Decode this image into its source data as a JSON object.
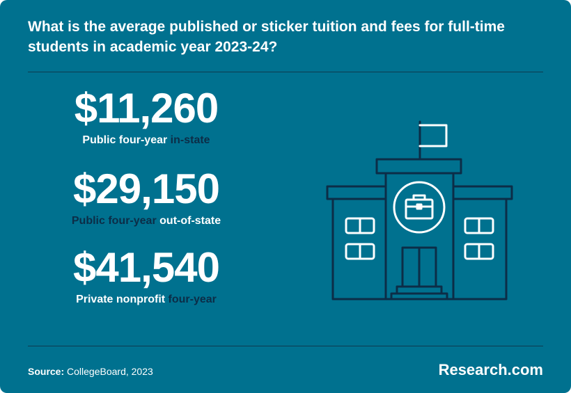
{
  "header": {
    "title": "What is the average published or sticker tuition and fees for full-time students in academic year 2023-24?"
  },
  "stats": [
    {
      "value": "$11,260",
      "label_part1": "Public four-year",
      "label_part2": "in-state"
    },
    {
      "value": "$29,150",
      "label_part1": "Public four-year",
      "label_part2": "out-of-state"
    },
    {
      "value": "$41,540",
      "label_part1": "Private nonprofit",
      "label_part2": "four-year"
    }
  ],
  "footer": {
    "source_label": "Source:",
    "source_text": "CollegeBoard, 2023",
    "brand": "Research.com"
  },
  "illustration": {
    "icon": "school-building-icon"
  },
  "colors": {
    "background": "#00718f",
    "text": "#ffffff",
    "dark_accent": "#0c2d47",
    "rule": "#0e3a4f"
  }
}
